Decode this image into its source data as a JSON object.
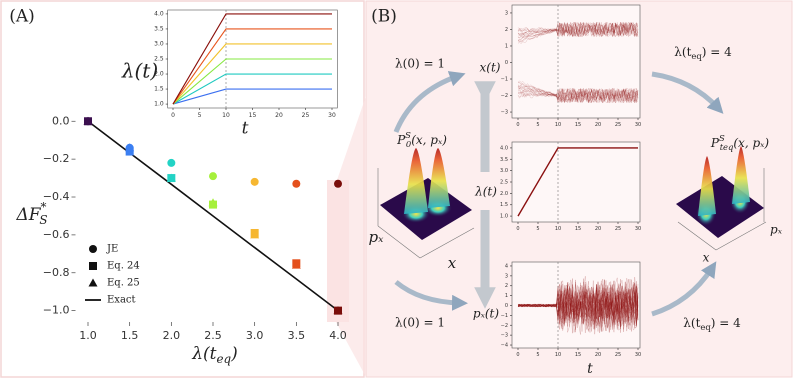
{
  "panel_labels": [
    "(A)",
    "(B)"
  ],
  "chart_data": [
    {
      "type": "scatter",
      "x": [
        1,
        1.5,
        2,
        2.5,
        3,
        3.5,
        4
      ],
      "point_colors": [
        "#3b0f4f",
        "#3b7ff2",
        "#22d3c5",
        "#a6f03c",
        "#f6b731",
        "#e4501c",
        "#7a0d0a"
      ],
      "series": [
        {
          "name": "JE",
          "marker": "circle",
          "values": [
            0,
            -0.14,
            -0.22,
            -0.29,
            -0.32,
            -0.33,
            -0.33
          ]
        },
        {
          "name": "Eq. 24",
          "marker": "square",
          "values": [
            0,
            -0.16,
            -0.3,
            -0.44,
            -0.59,
            -0.75,
            -1.0
          ]
        },
        {
          "name": "Eq. 25",
          "marker": "triangle",
          "values": [
            0,
            -0.14,
            -0.3,
            -0.43,
            -0.6,
            -0.76,
            -1.0
          ]
        },
        {
          "name": "Exact",
          "marker": "line",
          "color": "#111111",
          "values": [
            0,
            -0.167,
            -0.333,
            -0.5,
            -0.667,
            -0.833,
            -1.0
          ]
        }
      ],
      "xlabel": {
        "main": "λ(t",
        "sub": "eq",
        "end": ")"
      },
      "ylabel": {
        "main": "ΔF",
        "sup": "*",
        "sub": "S"
      },
      "xlim": [
        0.85,
        4.15
      ],
      "ylim": [
        -1.06,
        0.07
      ],
      "xticks": [
        {
          "value": 1,
          "label": "1.0"
        },
        {
          "value": 1.5,
          "label": "1.5"
        },
        {
          "value": 2,
          "label": "2.0"
        },
        {
          "value": 2.5,
          "label": "2.5"
        },
        {
          "value": 3,
          "label": "3.0"
        },
        {
          "value": 3.5,
          "label": "3.5"
        },
        {
          "value": 4,
          "label": "4.0"
        }
      ],
      "yticks": [
        {
          "value": 0,
          "label": "0.0"
        },
        {
          "value": -0.2,
          "label": "−0.2"
        },
        {
          "value": -0.4,
          "label": "−0.4"
        },
        {
          "value": -0.6,
          "label": "−0.6"
        },
        {
          "value": -0.8,
          "label": "−0.8"
        },
        {
          "value": -1,
          "label": "−1.0"
        }
      ]
    },
    {
      "type": "line",
      "x": [
        0,
        10,
        30
      ],
      "series": [
        {
          "color": "#3b6ff0",
          "values": [
            1,
            1.5,
            1.5
          ]
        },
        {
          "color": "#1ec9c0",
          "values": [
            1,
            2,
            2
          ]
        },
        {
          "color": "#86e840",
          "values": [
            1,
            2.5,
            2.5
          ]
        },
        {
          "color": "#f2c22c",
          "values": [
            1,
            3,
            3
          ]
        },
        {
          "color": "#e8541c",
          "values": [
            1,
            3.5,
            3.5
          ]
        },
        {
          "color": "#8a0f0a",
          "values": [
            1,
            4,
            4
          ]
        }
      ],
      "vline": 10,
      "xlabel": "t",
      "ylabel": "λ(t)",
      "xlim": [
        -1,
        31
      ],
      "ylim": [
        0.87,
        4.13
      ],
      "xticks": [
        0,
        5,
        10,
        15,
        20,
        25,
        30
      ],
      "yticks": [
        {
          "value": 1,
          "label": "1.0"
        },
        {
          "value": 1.5,
          "label": "1.5"
        },
        {
          "value": 2,
          "label": "2.0"
        },
        {
          "value": 2.5,
          "label": "2.5"
        },
        {
          "value": 3,
          "label": "3.0"
        },
        {
          "value": 3.5,
          "label": "3.5"
        },
        {
          "value": 4,
          "label": "4.0"
        }
      ]
    },
    {
      "type": "trajectories",
      "mode": "bistable",
      "color": "#8b1010",
      "vline": 10,
      "ylabel": "x(t)",
      "xlim": [
        -1.5,
        30.5
      ],
      "ylim": [
        -3.36,
        3.48
      ],
      "xticks": [
        0,
        5,
        10,
        15,
        20,
        25,
        30
      ],
      "yticks": [
        {
          "value": -3,
          "label": "−3"
        },
        {
          "value": -2,
          "label": "−2"
        },
        {
          "value": -1,
          "label": "−1"
        },
        0,
        1,
        2,
        3
      ]
    },
    {
      "type": "line",
      "x": [
        0,
        10,
        30
      ],
      "series": [
        {
          "color": "#8b1010",
          "values": [
            1,
            4,
            4
          ]
        }
      ],
      "vline": 10,
      "ylabel": "λ(t)",
      "xlim": [
        -1.5,
        30.5
      ],
      "ylim": [
        0.74,
        4.26
      ],
      "xticks": [
        0,
        5,
        10,
        15,
        20,
        25,
        30
      ],
      "yticks": [
        {
          "value": 1,
          "label": "1.0"
        },
        {
          "value": 1.5,
          "label": "1.5"
        },
        {
          "value": 2,
          "label": "2.0"
        },
        {
          "value": 2.5,
          "label": "2.5"
        },
        {
          "value": 3,
          "label": "3.0"
        },
        {
          "value": 3.5,
          "label": "3.5"
        },
        {
          "value": 4,
          "label": "4.0"
        }
      ]
    },
    {
      "type": "trajectories",
      "mode": "momentum",
      "color": "#8b1010",
      "vline": 10,
      "ylabel": "pₓ(t)",
      "xlabel": "t",
      "xlim": [
        -1.5,
        30.5
      ],
      "ylim": [
        -4.3,
        4.4
      ],
      "xticks": [
        0,
        5,
        10,
        15,
        20,
        25,
        30
      ],
      "yticks": [
        {
          "value": -4,
          "label": "−4"
        },
        {
          "value": -3,
          "label": "−3"
        },
        {
          "value": -2,
          "label": "−2"
        },
        {
          "value": -1,
          "label": "−1"
        },
        0,
        1,
        2,
        3,
        4
      ]
    }
  ],
  "panel_b": {
    "lambda_start_top": "λ(0) = 1",
    "lambda_start_bottom": "λ(0) = 1",
    "lambda_eq_top": {
      "main": "λ(t",
      "sub": "eq",
      "end": ") = 4"
    },
    "lambda_eq_bottom": {
      "main": "λ(t",
      "sub": "eq",
      "end": ") = 4"
    },
    "initial_distribution": {
      "main": "P",
      "sup": "S",
      "sub": "0",
      "end": "(x, pₓ)"
    },
    "final_distribution": {
      "main": "P",
      "sup": "S",
      "sub": "teq",
      "end": "(x, pₓ)"
    },
    "left_surface_px": "pₓ",
    "left_surface_x": "x",
    "right_surface_px": "pₓ",
    "right_surface_x": "x"
  }
}
